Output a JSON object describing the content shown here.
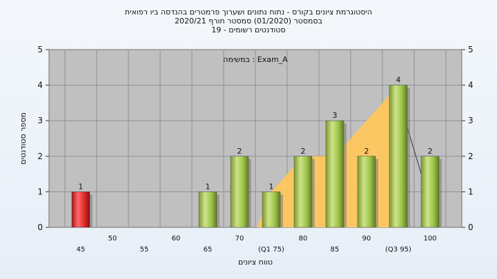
{
  "header": {
    "title_line1": "היסטוגרמת ציונים בקורס - נתוח נתונים ושערוך פרמטרים בהנדסה ביו רפואית",
    "title_line2": "בסמסטר  (01/2020)  סמסטר חורף  2020/21",
    "title_line3": "סטודנטים רשומים - 19"
  },
  "chart_data": {
    "type": "bar",
    "title": "היסטוגרמת ציונים בקורס - נתוח נתונים ושערוך פרמטרים בהנדסה ביו רפואית",
    "annotation": "במשימה : Exam_A",
    "xlabel": "טווח ציונים",
    "ylabel": "מספר סטודנטים",
    "ylim": [
      0,
      5
    ],
    "yticks": [
      "0",
      "1",
      "2",
      "3",
      "4",
      "5"
    ],
    "grid": true,
    "categories": [
      "45",
      "50",
      "55",
      "60",
      "65",
      "70",
      "(Q1 75)",
      "80",
      "85",
      "90",
      "(Q3 95)",
      "100"
    ],
    "values": [
      1,
      0,
      0,
      0,
      1,
      2,
      1,
      2,
      3,
      2,
      4,
      2
    ],
    "value_labels": [
      "1",
      "",
      "",
      "",
      "1",
      "2",
      "1",
      "2",
      "3",
      "2",
      "4",
      "2"
    ],
    "highlight_index": 0,
    "quartile_range": [
      "(Q1 75)",
      "(Q3 95)"
    ],
    "colors": {
      "plot_bg": "#c0c0c0",
      "bar_green": "#9dc44a",
      "bar_red": "#e02a2a",
      "quartile_area": "#ffc85a"
    }
  }
}
